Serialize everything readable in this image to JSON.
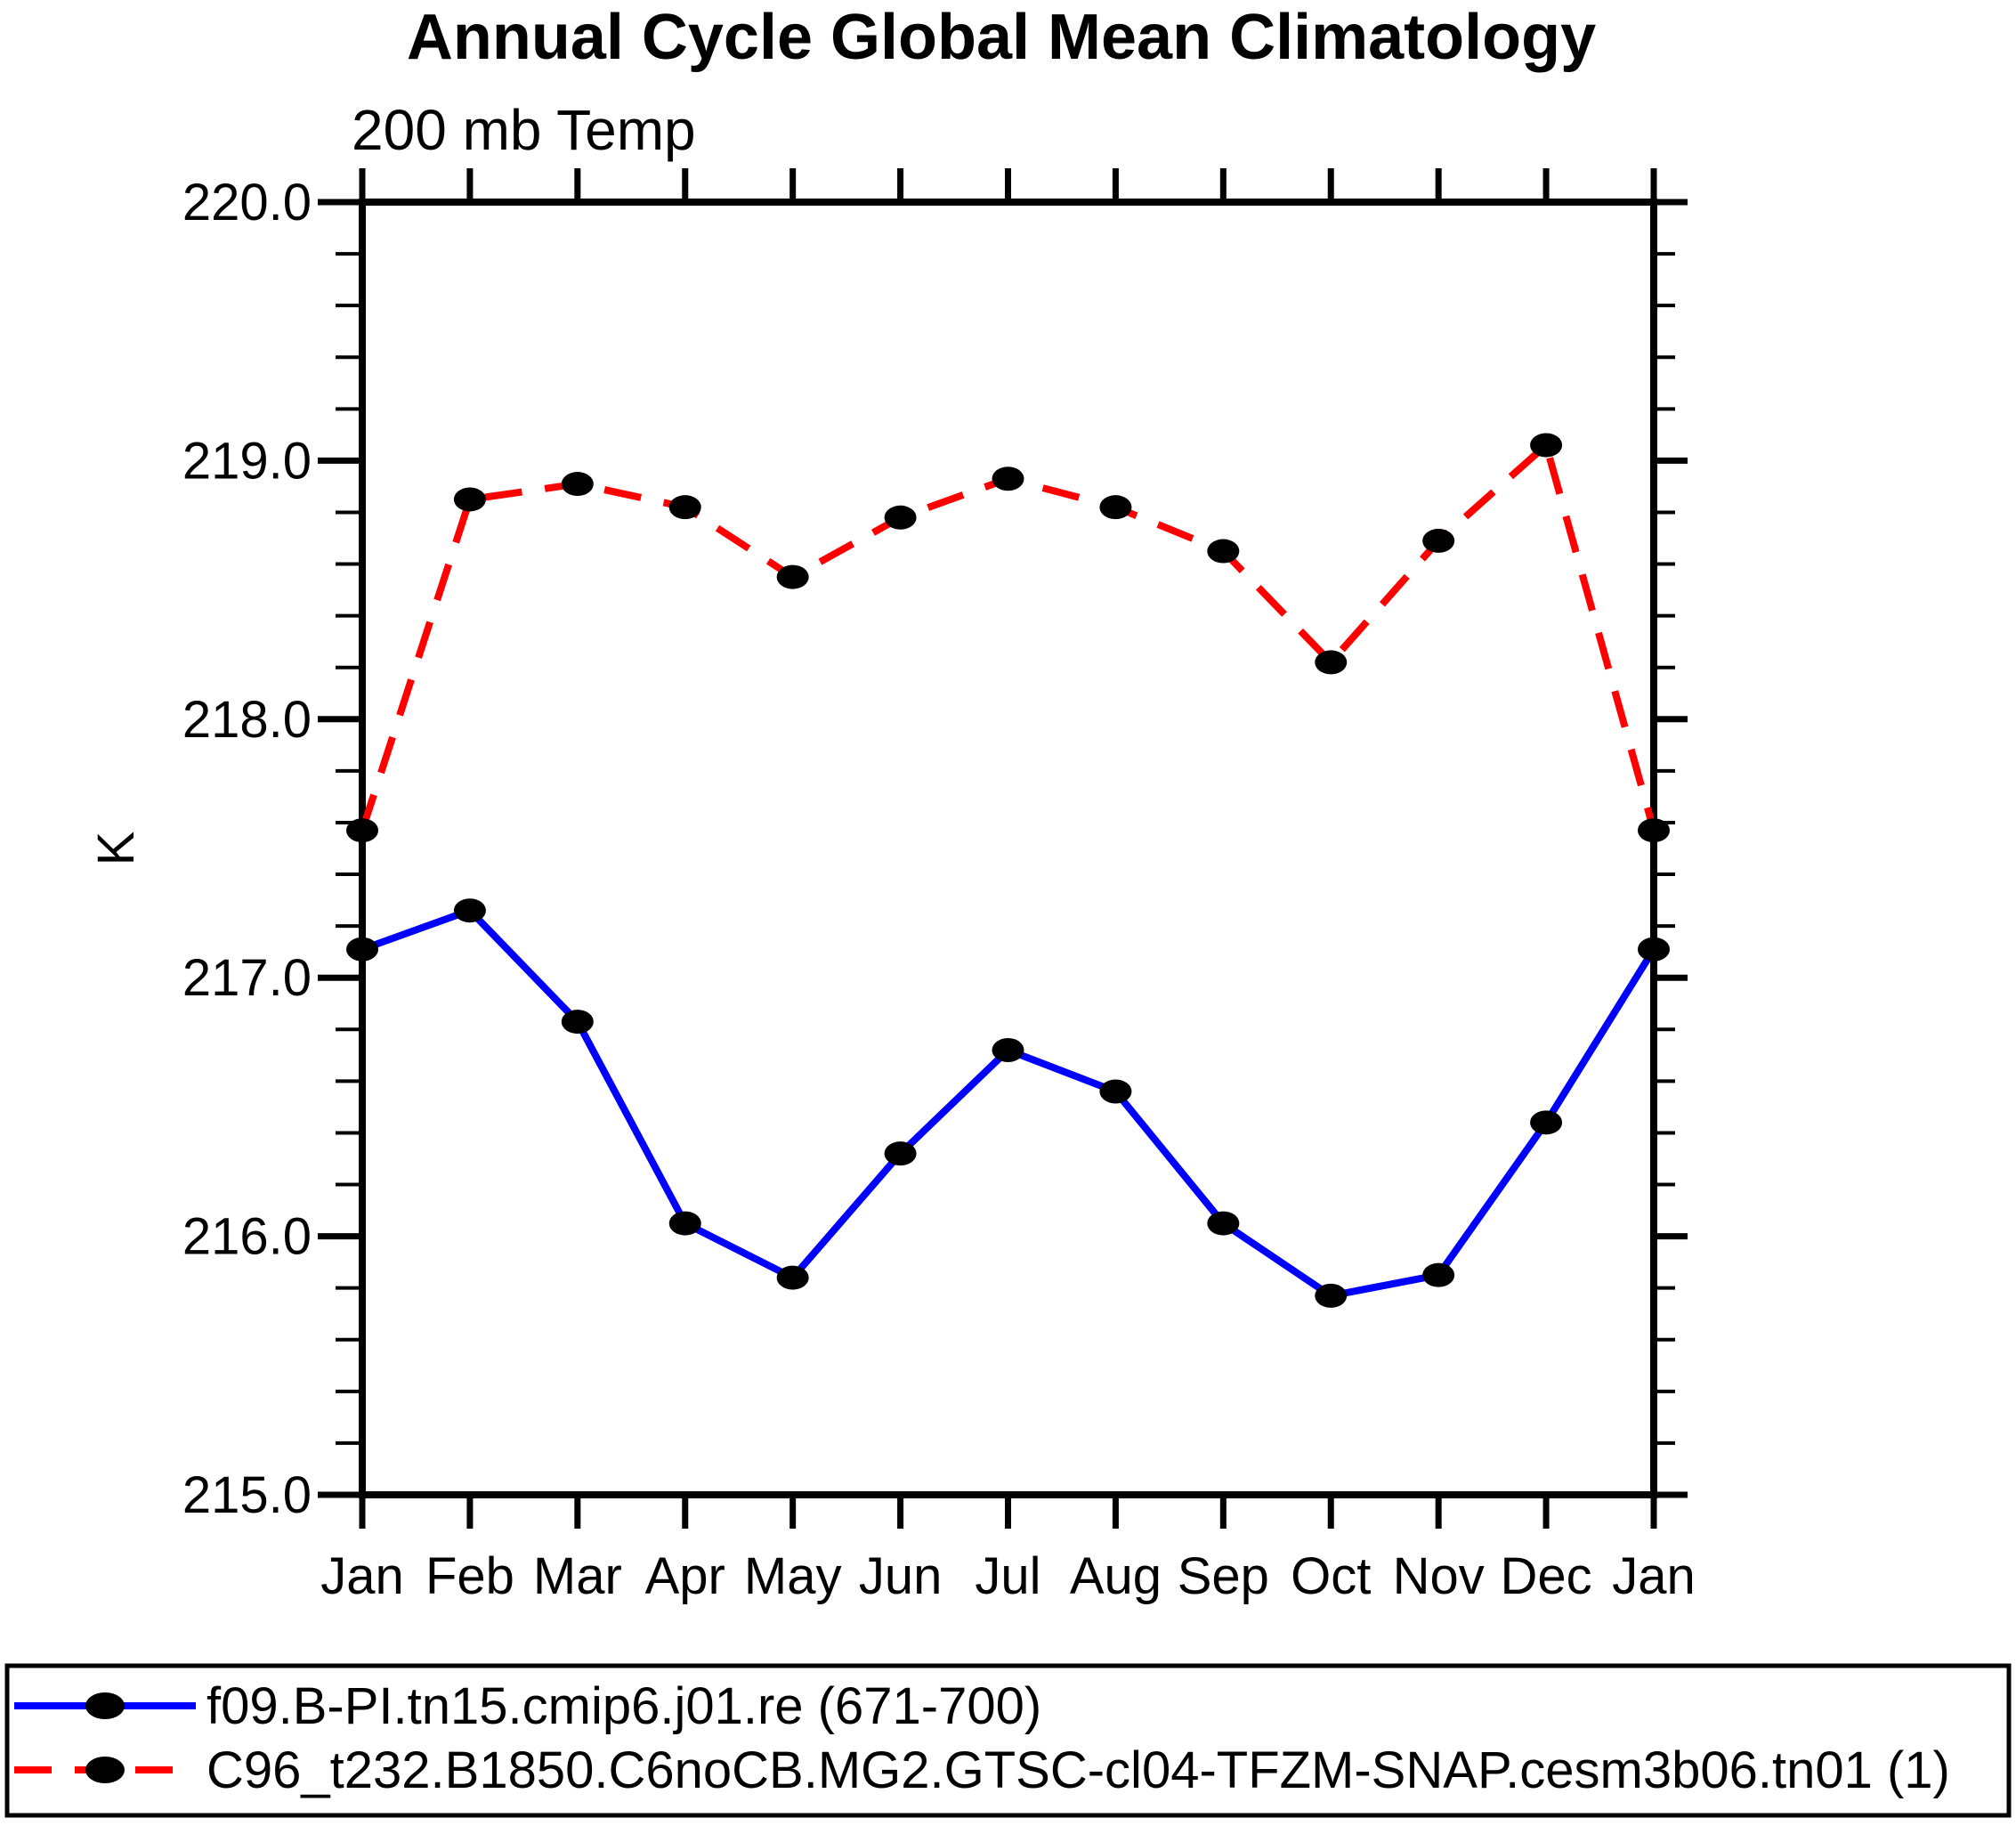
{
  "chart_data": {
    "type": "line",
    "title": "Annual Cycle Global Mean Climatology",
    "subtitle": "200 mb Temp",
    "ylabel": "K",
    "categories": [
      "Jan",
      "Feb",
      "Mar",
      "Apr",
      "May",
      "Jun",
      "Jul",
      "Aug",
      "Sep",
      "Oct",
      "Nov",
      "Dec",
      "Jan"
    ],
    "ylim": [
      215.0,
      220.0
    ],
    "ytick_labels": [
      "215.0",
      "216.0",
      "217.0",
      "218.0",
      "219.0",
      "220.0"
    ],
    "y_minor_step": 0.2,
    "grid": false,
    "legend_position": "bottom",
    "marker_color": "#000000",
    "axis_color": "#000000",
    "series": [
      {
        "name": "f09.B-PI.tn15.cmip6.j01.re (671-700)",
        "color": "#0000ff",
        "line_style": "solid",
        "marker": "filled-circle",
        "values": [
          217.11,
          217.26,
          216.83,
          216.05,
          215.84,
          216.32,
          216.72,
          216.56,
          216.05,
          215.77,
          215.85,
          216.44,
          217.11
        ]
      },
      {
        "name": "C96_t232.B1850.C6noCB.MG2.GTSC-cl04-TFZM-SNAP.cesm3b06.tn01 (1)",
        "color": "#ff0000",
        "line_style": "dashed",
        "marker": "filled-circle",
        "values": [
          217.57,
          218.85,
          218.91,
          218.82,
          218.55,
          218.78,
          218.93,
          218.82,
          218.65,
          218.22,
          218.69,
          219.06,
          217.57
        ]
      }
    ]
  }
}
